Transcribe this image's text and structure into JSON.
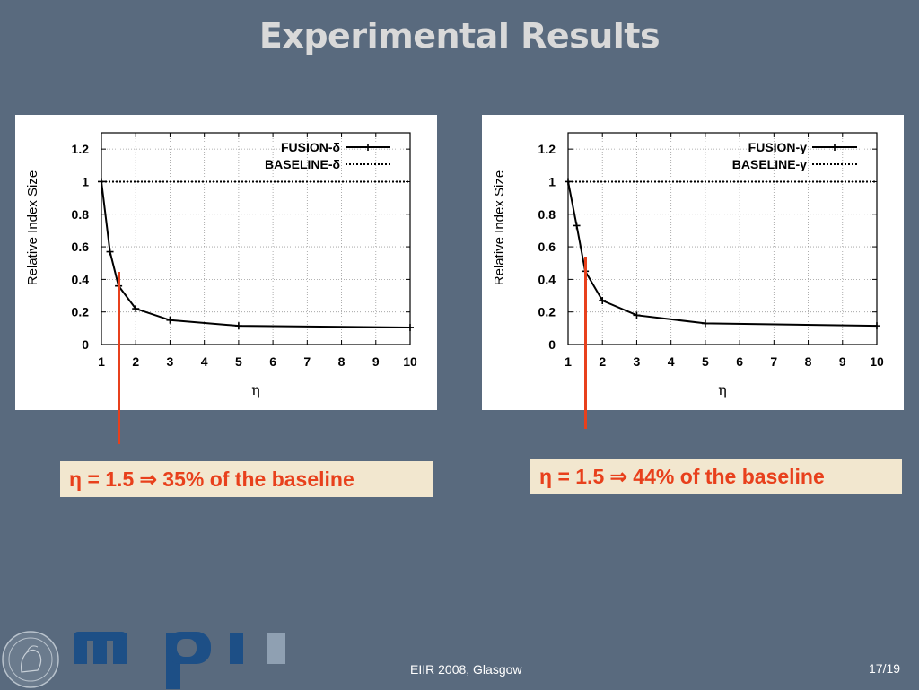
{
  "slide": {
    "title": "Experimental Results",
    "footer_venue": "EIIR 2008, Glasgow",
    "page_number": "17/19",
    "background_color": "#596a7e",
    "title_color": "#d9d9d9",
    "accent_color": "#e8401c",
    "callout_bg_color": "#f2e7cf"
  },
  "logo": {
    "icon": "mpi-logo",
    "text": "mpi",
    "color": "#1d4f86"
  },
  "seal": {
    "icon": "minerva-seal"
  },
  "callouts": [
    {
      "text": "η = 1.5 ⇒ 35% of the baseline"
    },
    {
      "text": "η = 1.5 ⇒ 44% of the baseline"
    }
  ],
  "chart_data": [
    {
      "type": "line",
      "xlabel": "η",
      "ylabel": "Relative Index Size",
      "xlim": [
        1,
        10
      ],
      "ylim": [
        0,
        1.3
      ],
      "xticks": [
        "1",
        "2",
        "3",
        "4",
        "5",
        "6",
        "7",
        "8",
        "9",
        "10"
      ],
      "yticks": [
        "0",
        "0.2",
        "0.4",
        "0.6",
        "0.8",
        "1",
        "1.2"
      ],
      "grid": true,
      "legend_position": "top-right",
      "highlight_x": 1.5,
      "series": [
        {
          "name": "FUSION-δ",
          "style": "solid-with-plus-markers",
          "x": [
            1,
            1.25,
            1.5,
            2,
            3,
            5,
            10
          ],
          "y": [
            1.0,
            0.57,
            0.36,
            0.22,
            0.15,
            0.115,
            0.105
          ]
        },
        {
          "name": "BASELINE-δ",
          "style": "dotted",
          "x": [
            1,
            10
          ],
          "y": [
            1.0,
            1.0
          ]
        }
      ]
    },
    {
      "type": "line",
      "xlabel": "η",
      "ylabel": "Relative Index Size",
      "xlim": [
        1,
        10
      ],
      "ylim": [
        0,
        1.3
      ],
      "xticks": [
        "1",
        "2",
        "3",
        "4",
        "5",
        "6",
        "7",
        "8",
        "9",
        "10"
      ],
      "yticks": [
        "0",
        "0.2",
        "0.4",
        "0.6",
        "0.8",
        "1",
        "1.2"
      ],
      "grid": true,
      "legend_position": "top-right",
      "highlight_x": 1.5,
      "series": [
        {
          "name": "FUSION-γ",
          "style": "solid-with-plus-markers",
          "x": [
            1,
            1.25,
            1.5,
            2,
            3,
            5,
            10
          ],
          "y": [
            1.0,
            0.73,
            0.45,
            0.27,
            0.18,
            0.13,
            0.115
          ]
        },
        {
          "name": "BASELINE-γ",
          "style": "dotted",
          "x": [
            1,
            10
          ],
          "y": [
            1.0,
            1.0
          ]
        }
      ]
    }
  ]
}
